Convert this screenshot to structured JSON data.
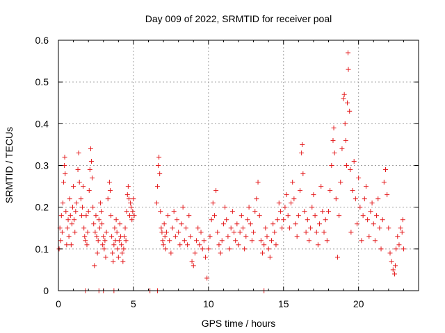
{
  "chart_data": {
    "type": "scatter",
    "title": "Day 009 of 2022, SRMTID for receiver poal",
    "xlabel": "GPS time / hours",
    "ylabel": "SRMTID / TECUs",
    "xlim": [
      0,
      24
    ],
    "ylim": [
      0,
      0.6
    ],
    "xticks": [
      0,
      5,
      10,
      15,
      20
    ],
    "yticks": [
      0,
      0.1,
      0.2,
      0.3,
      0.4,
      0.5,
      0.6
    ],
    "xtick_labels": [
      "0",
      "5",
      "10",
      "15",
      "20"
    ],
    "ytick_labels": [
      "0",
      "0.1",
      "0.2",
      "0.3",
      "0.4",
      "0.5",
      "0.6"
    ],
    "grid": true,
    "marker": "+",
    "color": "#e41a1c",
    "series": [
      {
        "name": "SRMTID",
        "points": [
          [
            0.05,
            0.1
          ],
          [
            0.1,
            0.15
          ],
          [
            0.15,
            0.12
          ],
          [
            0.2,
            0.18
          ],
          [
            0.25,
            0.14
          ],
          [
            0.3,
            0.21
          ],
          [
            0.35,
            0.26
          ],
          [
            0.4,
            0.3
          ],
          [
            0.42,
            0.32
          ],
          [
            0.45,
            0.28
          ],
          [
            0.5,
            0.19
          ],
          [
            0.55,
            0.11
          ],
          [
            0.6,
            0.15
          ],
          [
            0.65,
            0.17
          ],
          [
            0.7,
            0.13
          ],
          [
            0.75,
            0.22
          ],
          [
            0.8,
            0.18
          ],
          [
            0.85,
            0.11
          ],
          [
            0.9,
            0.16
          ],
          [
            0.95,
            0.2
          ],
          [
            1.0,
            0.25
          ],
          [
            1.05,
            0.17
          ],
          [
            1.1,
            0.14
          ],
          [
            1.15,
            0.19
          ],
          [
            1.2,
            0.21
          ],
          [
            1.3,
            0.29
          ],
          [
            1.35,
            0.33
          ],
          [
            1.4,
            0.26
          ],
          [
            1.5,
            0.22
          ],
          [
            1.55,
            0.18
          ],
          [
            1.6,
            0.2
          ],
          [
            1.65,
            0.25
          ],
          [
            1.7,
            0.15
          ],
          [
            1.75,
            0.13
          ],
          [
            1.8,
            0.12
          ],
          [
            1.85,
            0.18
          ],
          [
            1.9,
            0.11
          ],
          [
            1.95,
            0.14
          ],
          [
            2.0,
            0.19
          ],
          [
            2.05,
            0.24
          ],
          [
            2.1,
            0.29
          ],
          [
            2.15,
            0.34
          ],
          [
            2.2,
            0.31
          ],
          [
            2.25,
            0.27
          ],
          [
            2.3,
            0.2
          ],
          [
            2.35,
            0.16
          ],
          [
            2.4,
            0.06
          ],
          [
            2.45,
            0.14
          ],
          [
            2.5,
            0.18
          ],
          [
            2.55,
            0.13
          ],
          [
            2.6,
            0.09
          ],
          [
            2.65,
            0.12
          ],
          [
            2.7,
            0.17
          ],
          [
            2.75,
            0.15
          ],
          [
            2.8,
            0.21
          ],
          [
            2.85,
            0.19
          ],
          [
            2.9,
            0.16
          ],
          [
            2.95,
            0.11
          ],
          [
            3.0,
            0.13
          ],
          [
            3.05,
            0.1
          ],
          [
            3.1,
            0.12
          ],
          [
            3.15,
            0.08
          ],
          [
            3.2,
            0.14
          ],
          [
            3.3,
            0.22
          ],
          [
            3.4,
            0.26
          ],
          [
            3.45,
            0.24
          ],
          [
            3.5,
            0.18
          ],
          [
            3.55,
            0.13
          ],
          [
            3.6,
            0.09
          ],
          [
            3.65,
            0.07
          ],
          [
            3.7,
            0.11
          ],
          [
            3.75,
            0.15
          ],
          [
            3.8,
            0.12
          ],
          [
            3.85,
            0.17
          ],
          [
            3.9,
            0.14
          ],
          [
            3.95,
            0.1
          ],
          [
            4.0,
            0.08
          ],
          [
            4.05,
            0.12
          ],
          [
            4.1,
            0.16
          ],
          [
            4.15,
            0.13
          ],
          [
            4.2,
            0.11
          ],
          [
            4.25,
            0.09
          ],
          [
            4.3,
            0.07
          ],
          [
            4.35,
            0.1
          ],
          [
            4.4,
            0.13
          ],
          [
            4.45,
            0.15
          ],
          [
            4.5,
            0.12
          ],
          [
            4.55,
            0.19
          ],
          [
            4.6,
            0.23
          ],
          [
            4.65,
            0.25
          ],
          [
            4.7,
            0.22
          ],
          [
            4.75,
            0.18
          ],
          [
            4.8,
            0.21
          ],
          [
            4.85,
            0.2
          ],
          [
            4.9,
            0.17
          ],
          [
            4.95,
            0.19
          ],
          [
            5.0,
            0.22
          ],
          [
            5.05,
            0.18
          ],
          [
            1.8,
            0.0
          ],
          [
            2.7,
            0.0
          ],
          [
            3.0,
            0.0
          ],
          [
            3.7,
            0.0
          ],
          [
            6.1,
            0.0
          ],
          [
            6.6,
            0.0
          ],
          [
            13.7,
            0.0
          ],
          [
            6.55,
            0.21
          ],
          [
            6.6,
            0.25
          ],
          [
            6.65,
            0.3
          ],
          [
            6.7,
            0.32
          ],
          [
            6.75,
            0.28
          ],
          [
            6.8,
            0.19
          ],
          [
            6.85,
            0.15
          ],
          [
            6.9,
            0.14
          ],
          [
            6.95,
            0.12
          ],
          [
            7.0,
            0.11
          ],
          [
            7.05,
            0.16
          ],
          [
            7.1,
            0.13
          ],
          [
            7.15,
            0.1
          ],
          [
            7.2,
            0.14
          ],
          [
            7.3,
            0.18
          ],
          [
            7.4,
            0.12
          ],
          [
            7.5,
            0.09
          ],
          [
            7.6,
            0.15
          ],
          [
            7.7,
            0.19
          ],
          [
            7.8,
            0.13
          ],
          [
            7.9,
            0.17
          ],
          [
            8.0,
            0.14
          ],
          [
            8.1,
            0.11
          ],
          [
            8.2,
            0.16
          ],
          [
            8.3,
            0.2
          ],
          [
            8.4,
            0.12
          ],
          [
            8.5,
            0.15
          ],
          [
            8.6,
            0.11
          ],
          [
            8.7,
            0.18
          ],
          [
            8.8,
            0.13
          ],
          [
            8.9,
            0.07
          ],
          [
            9.0,
            0.06
          ],
          [
            9.1,
            0.09
          ],
          [
            9.2,
            0.12
          ],
          [
            9.3,
            0.15
          ],
          [
            9.4,
            0.11
          ],
          [
            9.5,
            0.14
          ],
          [
            9.6,
            0.1
          ],
          [
            9.7,
            0.12
          ],
          [
            9.8,
            0.08
          ],
          [
            9.9,
            0.03
          ],
          [
            10.0,
            0.1
          ],
          [
            10.1,
            0.13
          ],
          [
            10.2,
            0.17
          ],
          [
            10.3,
            0.21
          ],
          [
            10.4,
            0.18
          ],
          [
            10.5,
            0.24
          ],
          [
            10.6,
            0.14
          ],
          [
            10.7,
            0.11
          ],
          [
            10.8,
            0.09
          ],
          [
            10.9,
            0.12
          ],
          [
            11.0,
            0.16
          ],
          [
            11.1,
            0.2
          ],
          [
            11.2,
            0.17
          ],
          [
            11.3,
            0.13
          ],
          [
            11.4,
            0.1
          ],
          [
            11.5,
            0.15
          ],
          [
            11.6,
            0.19
          ],
          [
            11.7,
            0.14
          ],
          [
            11.8,
            0.12
          ],
          [
            11.9,
            0.16
          ],
          [
            12.0,
            0.11
          ],
          [
            12.1,
            0.14
          ],
          [
            12.2,
            0.18
          ],
          [
            12.3,
            0.15
          ],
          [
            12.4,
            0.1
          ],
          [
            12.5,
            0.13
          ],
          [
            12.6,
            0.17
          ],
          [
            12.7,
            0.2
          ],
          [
            12.8,
            0.16
          ],
          [
            12.9,
            0.12
          ],
          [
            13.0,
            0.14
          ],
          [
            13.1,
            0.19
          ],
          [
            13.2,
            0.22
          ],
          [
            13.3,
            0.26
          ],
          [
            13.4,
            0.18
          ],
          [
            13.5,
            0.12
          ],
          [
            13.6,
            0.09
          ],
          [
            13.7,
            0.11
          ],
          [
            13.8,
            0.15
          ],
          [
            13.9,
            0.13
          ],
          [
            14.0,
            0.1
          ],
          [
            14.1,
            0.08
          ],
          [
            14.2,
            0.12
          ],
          [
            14.3,
            0.16
          ],
          [
            14.4,
            0.14
          ],
          [
            14.5,
            0.11
          ],
          [
            14.6,
            0.17
          ],
          [
            14.7,
            0.21
          ],
          [
            14.8,
            0.19
          ],
          [
            14.9,
            0.15
          ],
          [
            15.0,
            0.17
          ],
          [
            15.1,
            0.2
          ],
          [
            15.2,
            0.23
          ],
          [
            15.3,
            0.18
          ],
          [
            15.4,
            0.15
          ],
          [
            15.5,
            0.21
          ],
          [
            15.6,
            0.26
          ],
          [
            15.7,
            0.22
          ],
          [
            15.8,
            0.16
          ],
          [
            15.9,
            0.13
          ],
          [
            16.0,
            0.18
          ],
          [
            16.1,
            0.24
          ],
          [
            16.2,
            0.33
          ],
          [
            16.25,
            0.35
          ],
          [
            16.3,
            0.28
          ],
          [
            16.4,
            0.19
          ],
          [
            16.5,
            0.14
          ],
          [
            16.6,
            0.17
          ],
          [
            16.7,
            0.12
          ],
          [
            16.8,
            0.15
          ],
          [
            16.9,
            0.2
          ],
          [
            17.0,
            0.23
          ],
          [
            17.1,
            0.18
          ],
          [
            17.2,
            0.14
          ],
          [
            17.3,
            0.11
          ],
          [
            17.4,
            0.16
          ],
          [
            17.5,
            0.25
          ],
          [
            17.6,
            0.19
          ],
          [
            17.7,
            0.14
          ],
          [
            17.8,
            0.17
          ],
          [
            17.9,
            0.12
          ],
          [
            18.0,
            0.19
          ],
          [
            18.1,
            0.24
          ],
          [
            18.2,
            0.3
          ],
          [
            18.3,
            0.36
          ],
          [
            18.35,
            0.39
          ],
          [
            18.4,
            0.33
          ],
          [
            18.5,
            0.22
          ],
          [
            18.6,
            0.08
          ],
          [
            18.7,
            0.18
          ],
          [
            18.8,
            0.26
          ],
          [
            18.9,
            0.34
          ],
          [
            19.0,
            0.46
          ],
          [
            19.05,
            0.47
          ],
          [
            19.1,
            0.4
          ],
          [
            19.15,
            0.36
          ],
          [
            19.2,
            0.3
          ],
          [
            19.25,
            0.45
          ],
          [
            19.3,
            0.57
          ],
          [
            19.32,
            0.53
          ],
          [
            19.4,
            0.43
          ],
          [
            19.45,
            0.29
          ],
          [
            19.5,
            0.14
          ],
          [
            19.6,
            0.24
          ],
          [
            19.7,
            0.31
          ],
          [
            19.8,
            0.22
          ],
          [
            19.9,
            0.16
          ],
          [
            20.0,
            0.27
          ],
          [
            20.1,
            0.2
          ],
          [
            20.2,
            0.12
          ],
          [
            20.3,
            0.18
          ],
          [
            20.4,
            0.22
          ],
          [
            20.5,
            0.25
          ],
          [
            20.6,
            0.17
          ],
          [
            20.7,
            0.13
          ],
          [
            20.8,
            0.19
          ],
          [
            20.9,
            0.21
          ],
          [
            21.0,
            0.16
          ],
          [
            21.1,
            0.12
          ],
          [
            21.2,
            0.18
          ],
          [
            21.3,
            0.22
          ],
          [
            21.4,
            0.15
          ],
          [
            21.5,
            0.1
          ],
          [
            21.6,
            0.17
          ],
          [
            21.7,
            0.26
          ],
          [
            21.8,
            0.29
          ],
          [
            21.9,
            0.23
          ],
          [
            22.0,
            0.15
          ],
          [
            22.1,
            0.09
          ],
          [
            22.2,
            0.07
          ],
          [
            22.3,
            0.05
          ],
          [
            22.4,
            0.04
          ],
          [
            22.45,
            0.06
          ],
          [
            22.5,
            0.1
          ],
          [
            22.6,
            0.13
          ],
          [
            22.7,
            0.11
          ],
          [
            22.8,
            0.15
          ],
          [
            22.9,
            0.14
          ],
          [
            22.95,
            0.17
          ],
          [
            23.0,
            0.1
          ]
        ]
      }
    ]
  }
}
